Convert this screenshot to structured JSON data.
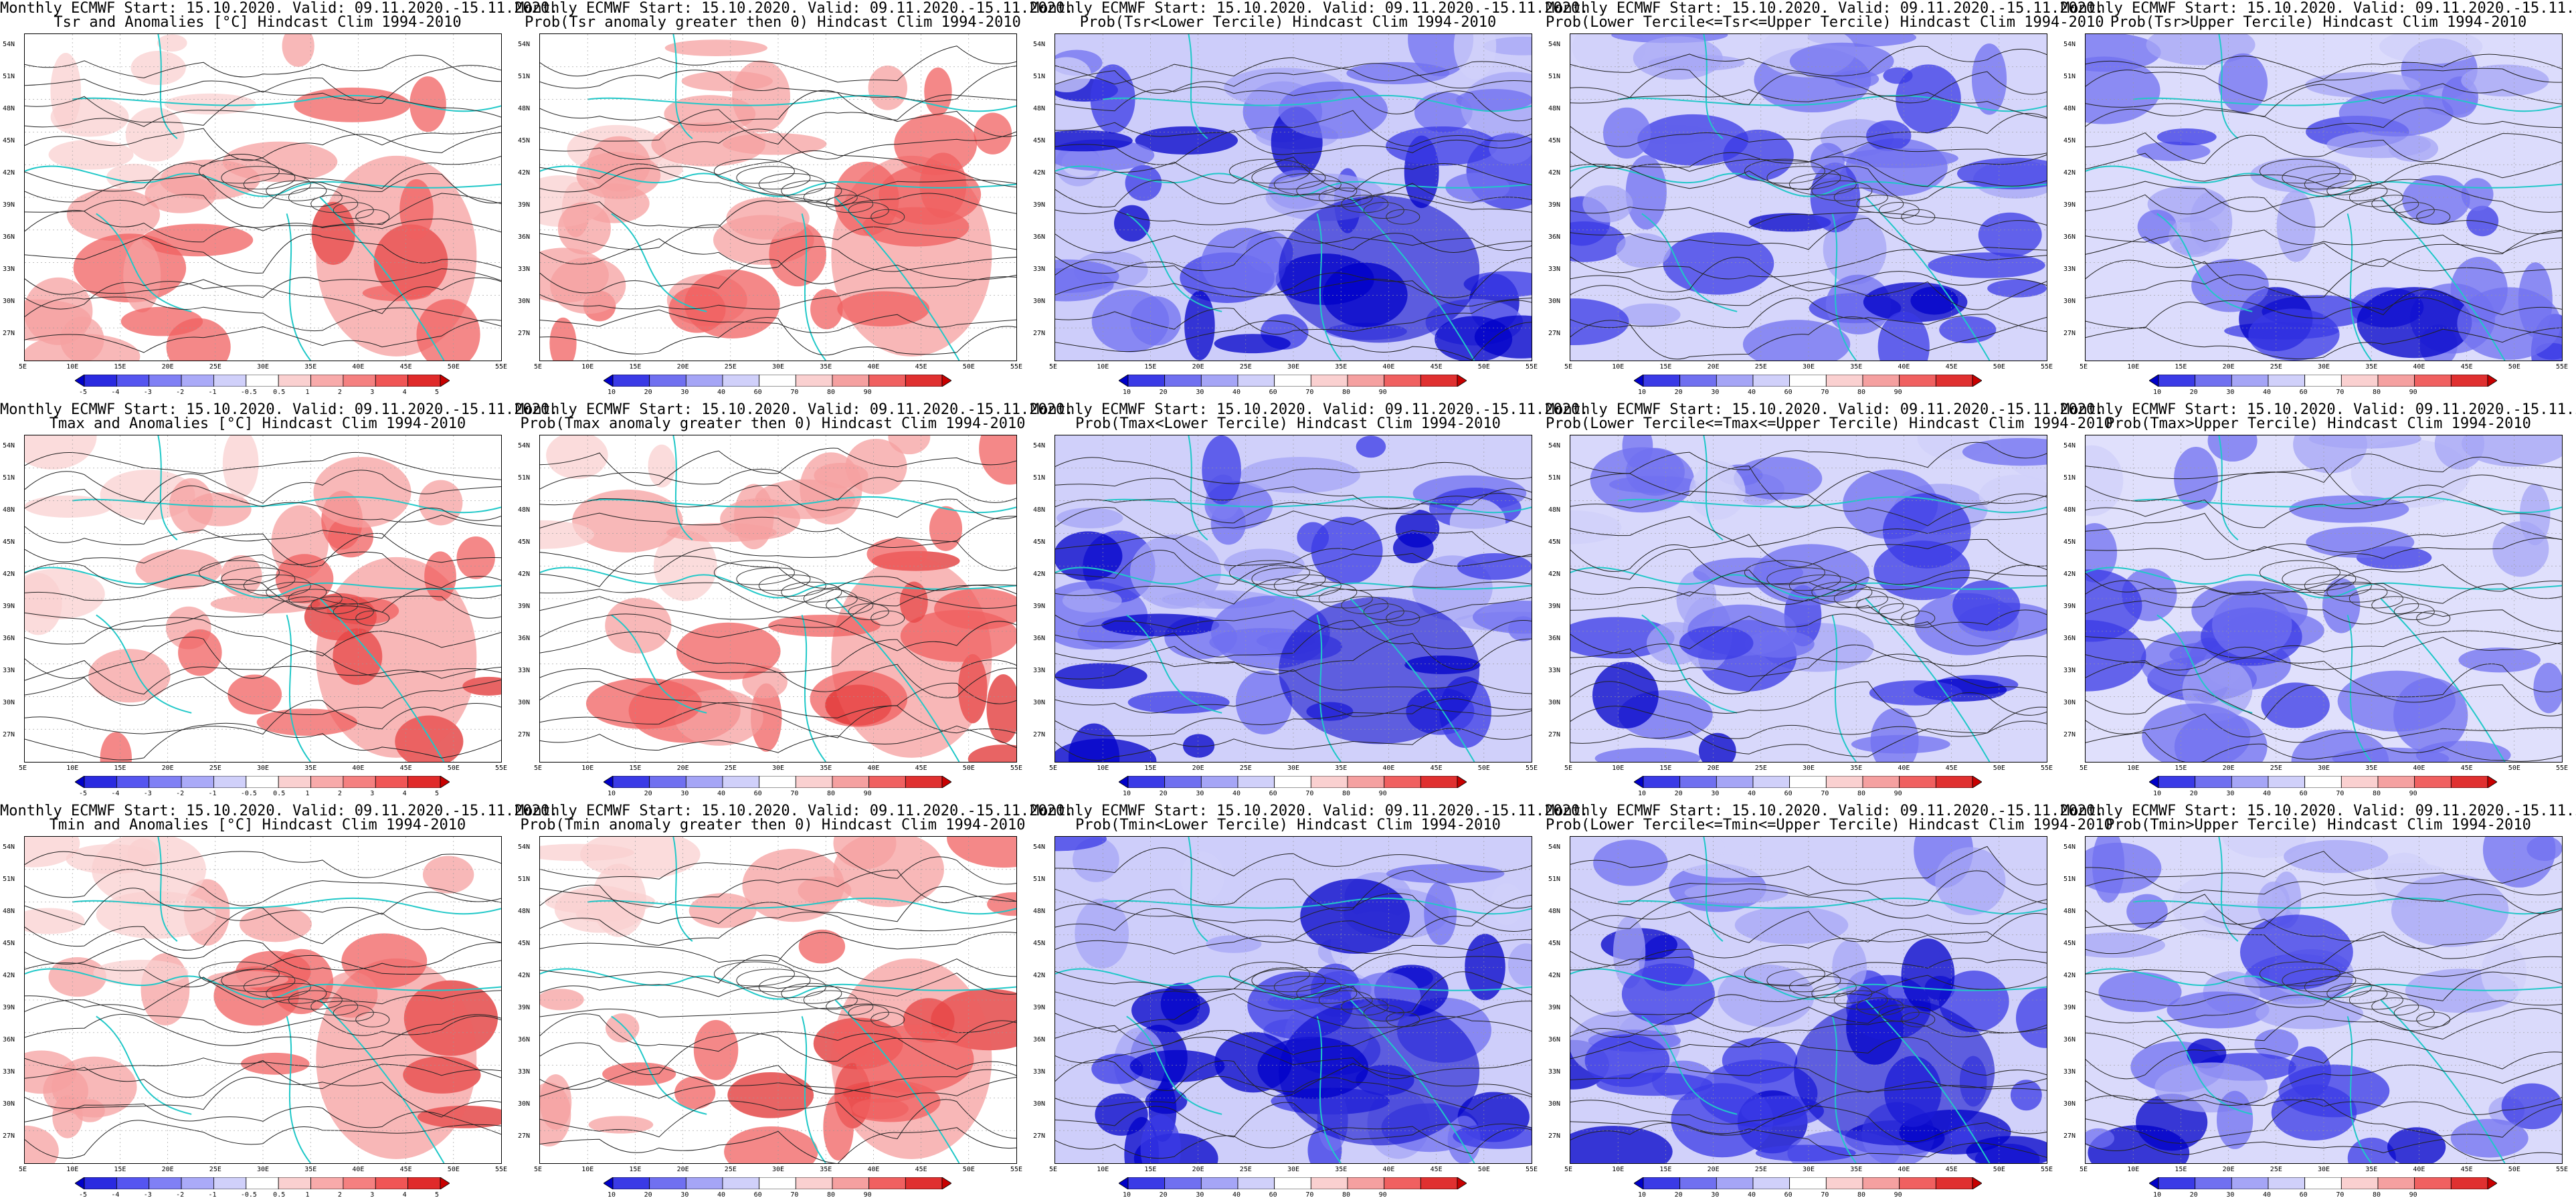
{
  "header_prefix": "Monthly ECMWF Start: 15.10.2020. Valid: 09.11.2020.-15.11.2020.",
  "lat_ticks": [
    "54N",
    "51N",
    "48N",
    "45N",
    "42N",
    "39N",
    "36N",
    "33N",
    "30N",
    "27N"
  ],
  "lon_ticks": [
    "5E",
    "10E",
    "15E",
    "20E",
    "25E",
    "30E",
    "35E",
    "40E",
    "45E",
    "50E",
    "55E"
  ],
  "colorbars": {
    "anomaly": {
      "labels": [
        "-5",
        "-4",
        "-3",
        "-2",
        "-1",
        "-0.5",
        "0.5",
        "1",
        "2",
        "3",
        "4",
        "5"
      ],
      "colors": [
        "#0000c8",
        "#2a2ae0",
        "#5555f0",
        "#8080f5",
        "#aaaaf8",
        "#d0d0fa",
        "#ffffff",
        "#fad0d0",
        "#f8aaaa",
        "#f58080",
        "#f05555",
        "#e02a2a",
        "#c80000"
      ]
    },
    "probability": {
      "labels": [
        "10",
        "20",
        "30",
        "40",
        "60",
        "70",
        "80",
        "90"
      ],
      "colors": [
        "#0000c8",
        "#3a3ae6",
        "#7070f0",
        "#a5a5f6",
        "#d0d0fa",
        "#ffffff",
        "#fad0d0",
        "#f5a0a0",
        "#f06060",
        "#e03030",
        "#c80000"
      ]
    }
  },
  "panels": [
    {
      "title": "Tsr and Anomalies [°C] Hindcast Clim 1994-2010",
      "bar": "anomaly",
      "fill": "warm",
      "level": 0.28
    },
    {
      "title": "Prob(Tsr anomaly greater then 0) Hindcast Clim 1994-2010",
      "bar": "probability",
      "fill": "warm",
      "level": 0.4
    },
    {
      "title": "Prob(Tsr<Lower Tercile) Hindcast Clim 1994-2010",
      "bar": "probability",
      "fill": "cold",
      "level": 0.8
    },
    {
      "title": "Prob(Lower Tercile<=Tsr<=Upper Tercile) Hindcast Clim 1994-2010",
      "bar": "probability",
      "fill": "cold",
      "level": 0.65
    },
    {
      "title": "Prob(Tsr>Upper Tercile) Hindcast Clim 1994-2010",
      "bar": "probability",
      "fill": "cold",
      "level": 0.55
    },
    {
      "title": "Tmax and Anomalies [°C] Hindcast Clim 1994-2010",
      "bar": "anomaly",
      "fill": "warm",
      "level": 0.3
    },
    {
      "title": "Prob(Tmax anomaly greater then 0) Hindcast Clim 1994-2010",
      "bar": "probability",
      "fill": "warm",
      "level": 0.38
    },
    {
      "title": "Prob(Tmax<Lower Tercile) Hindcast Clim 1994-2010",
      "bar": "probability",
      "fill": "cold",
      "level": 0.75
    },
    {
      "title": "Prob(Lower Tercile<=Tmax<=Upper Tercile) Hindcast Clim 1994-2010",
      "bar": "probability",
      "fill": "cold",
      "level": 0.62
    },
    {
      "title": "Prob(Tmax>Upper Tercile) Hindcast Clim 1994-2010",
      "bar": "probability",
      "fill": "cold",
      "level": 0.5
    },
    {
      "title": "Tmin and Anomalies [°C] Hindcast Clim 1994-2010",
      "bar": "anomaly",
      "fill": "warm",
      "level": 0.25
    },
    {
      "title": "Prob(Tmin anomaly greater then 0) Hindcast Clim 1994-2010",
      "bar": "probability",
      "fill": "warm",
      "level": 0.4
    },
    {
      "title": "Prob(Tmin<Lower Tercile) Hindcast Clim 1994-2010",
      "bar": "probability",
      "fill": "cold",
      "level": 0.78
    },
    {
      "title": "Prob(Lower Tercile<=Tmin<=Upper Tercile) Hindcast Clim 1994-2010",
      "bar": "probability",
      "fill": "cold",
      "level": 0.72
    },
    {
      "title": "Prob(Tmin>Upper Tercile) Hindcast Clim 1994-2010",
      "bar": "probability",
      "fill": "cold",
      "level": 0.58
    }
  ]
}
